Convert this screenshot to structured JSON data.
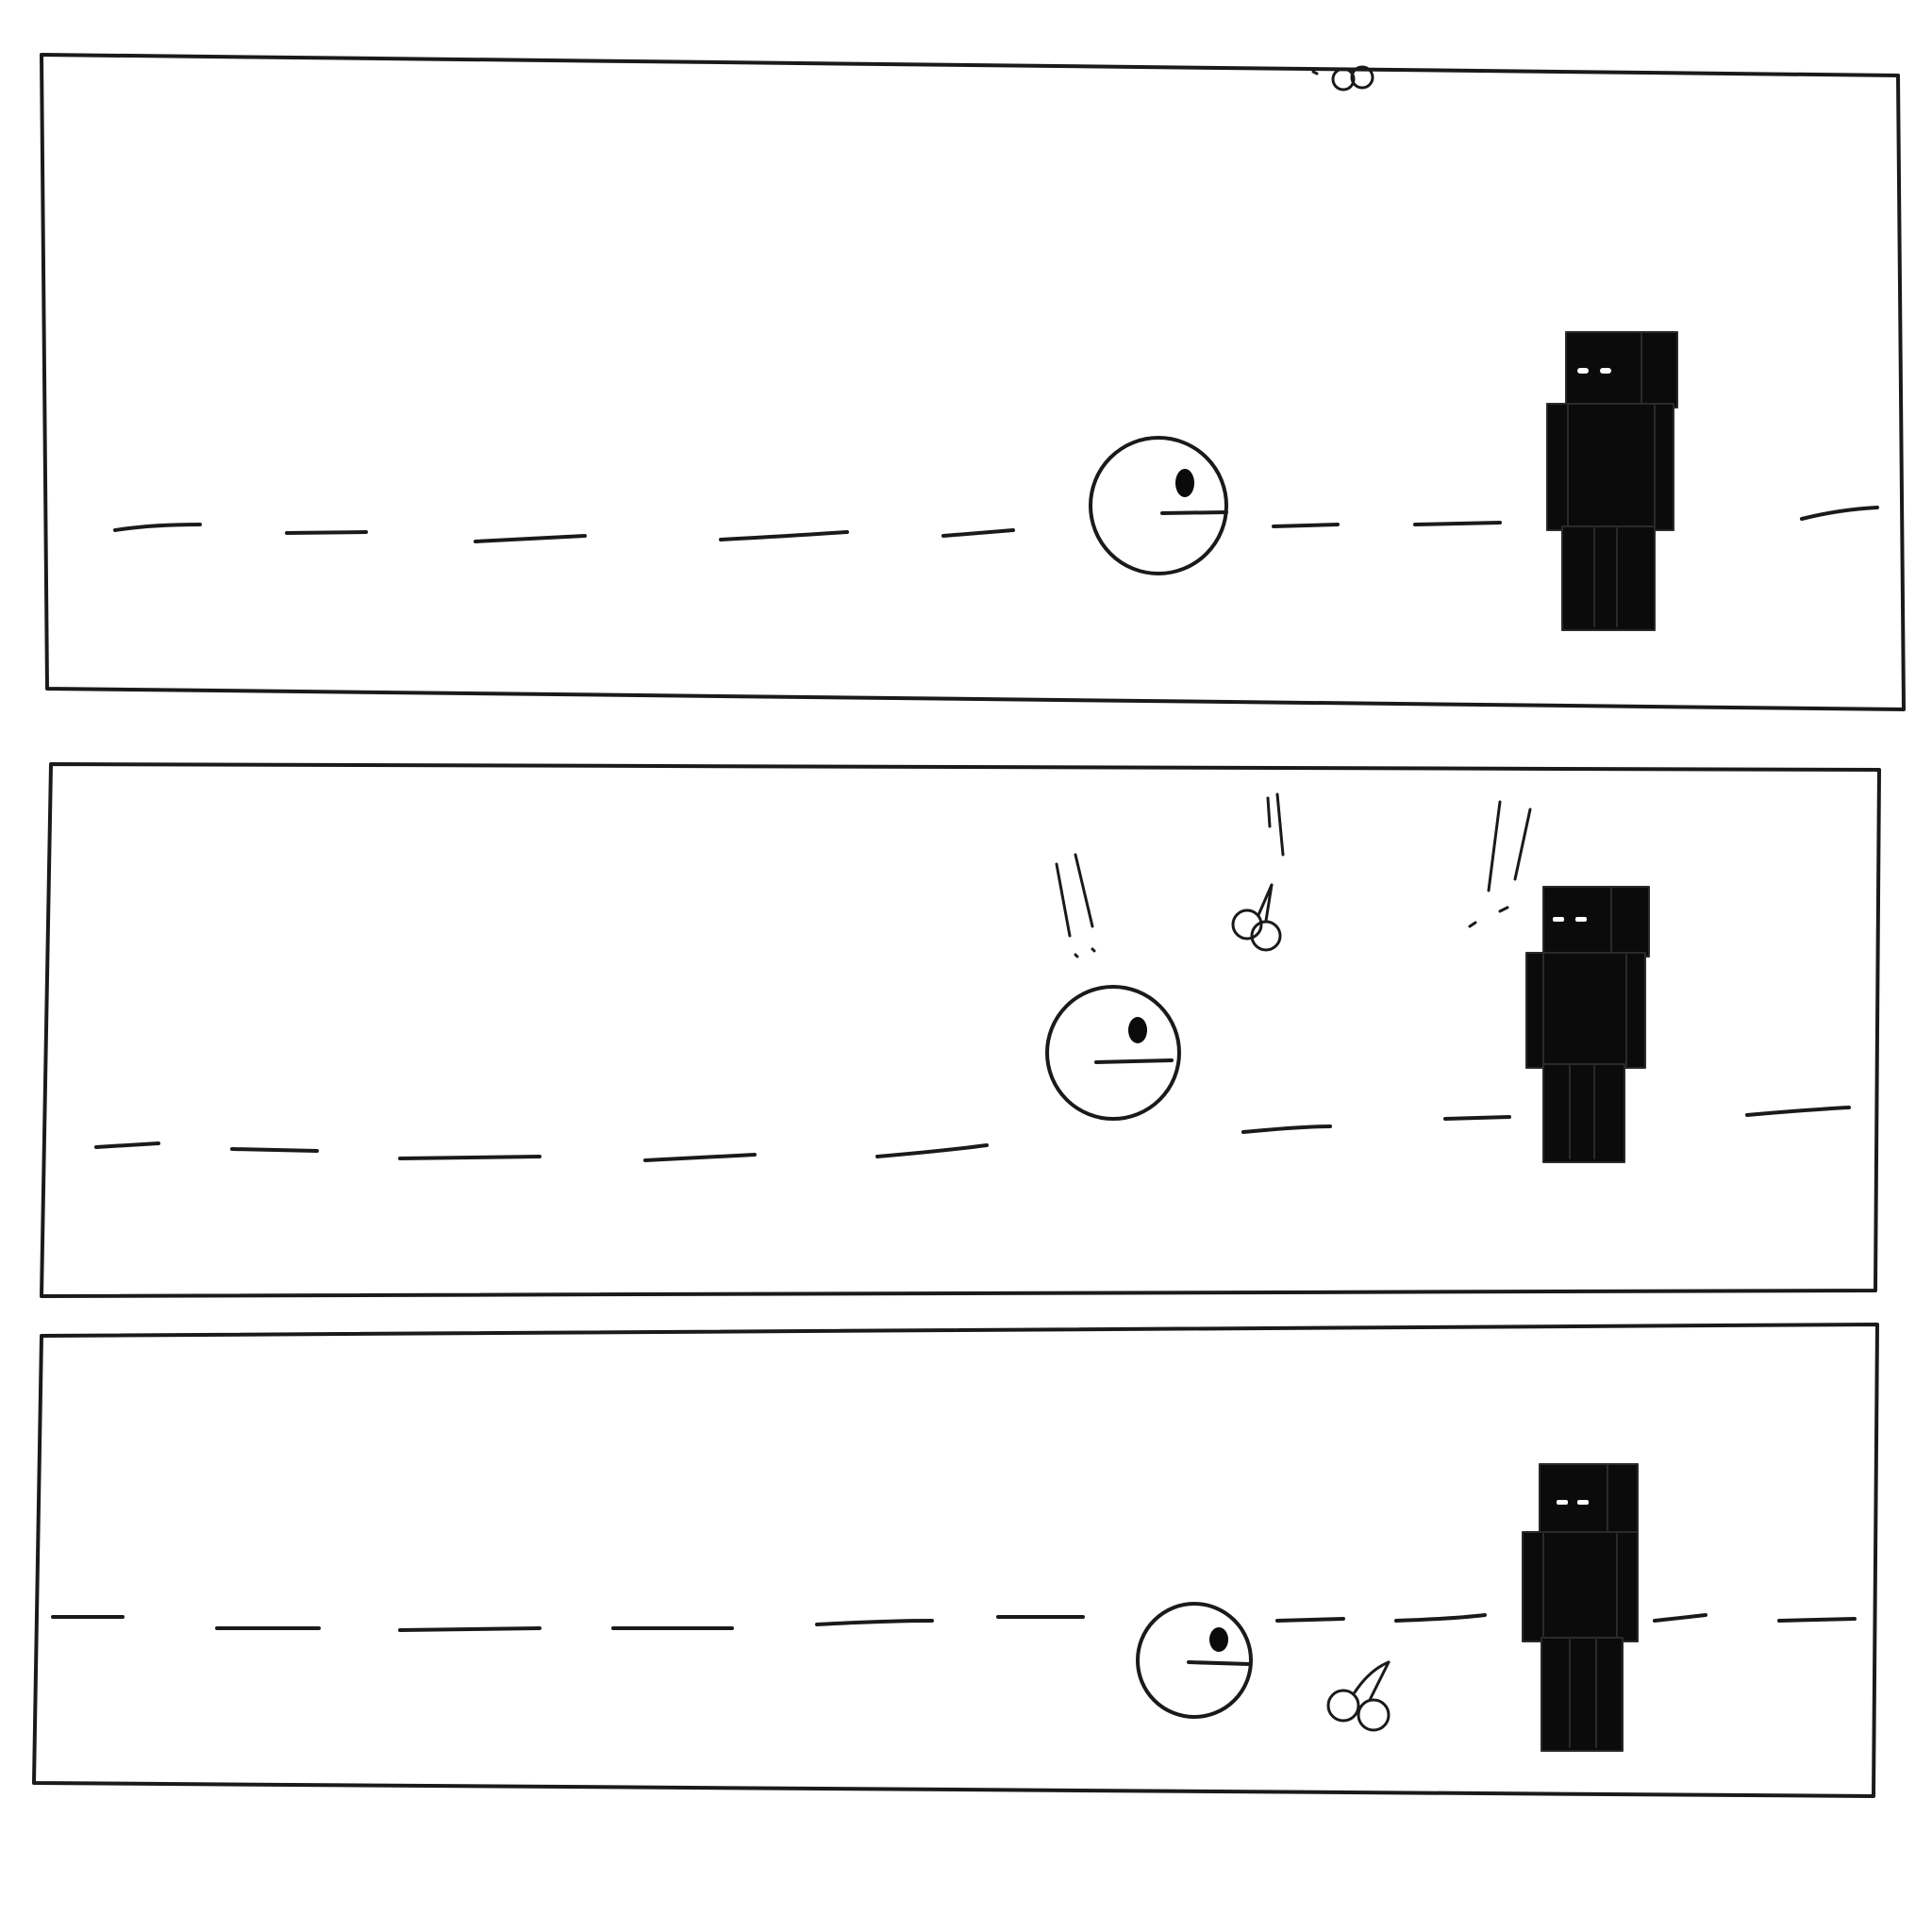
{
  "comic": {
    "panel_count": 3,
    "stroke_color": "#1a1a1a",
    "figure_fill": "#0b0b0b",
    "eye_color": "#ffffff",
    "panels": [
      {
        "scene": "pacman-on-dashed-road-facing-block-figure",
        "cherry": "entering-top",
        "surprise_marks": false
      },
      {
        "scene": "cherry-falls-between-pacman-and-block-figure",
        "cherry": "falling-center",
        "surprise_marks": true
      },
      {
        "scene": "cherry-lands-on-road",
        "cherry": "landed",
        "surprise_marks": false
      }
    ]
  }
}
